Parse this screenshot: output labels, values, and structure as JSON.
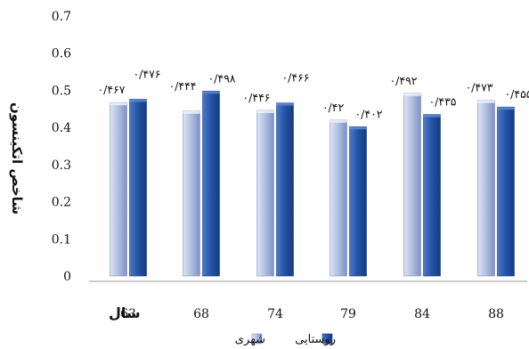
{
  "chart_data": {
    "type": "bar",
    "xlabel": "سال",
    "ylabel": "شاخص اتکینسون",
    "categories": [
      "63",
      "68",
      "74",
      "79",
      "84",
      "88"
    ],
    "ylim": [
      0,
      0.7
    ],
    "yticks": [
      "0",
      "0.1",
      "0.2",
      "0.3",
      "0.4",
      "0.5",
      "0.6",
      "0.7"
    ],
    "grid": false,
    "legend_position": "bottom",
    "series": [
      {
        "name": "شهری",
        "color": "#a7b6d9",
        "values": [
          0.467,
          0.444,
          0.446,
          0.42,
          0.492,
          0.473
        ],
        "labels": [
          "۰/۴۶۷",
          "۰/۴۴۴",
          "۰/۴۴۶",
          "۰/۴۲",
          "۰/۴۹۲",
          "۰/۴۷۳"
        ]
      },
      {
        "name": "روستایی",
        "color": "#1f4e9e",
        "values": [
          0.476,
          0.498,
          0.466,
          0.402,
          0.435,
          0.455
        ],
        "labels": [
          "۰/۴۷۶",
          "۰/۴۹۸",
          "۰/۴۶۶",
          "۰/۴۰۲",
          "۰/۴۳۵",
          "۰/۴۵۵"
        ]
      }
    ]
  }
}
